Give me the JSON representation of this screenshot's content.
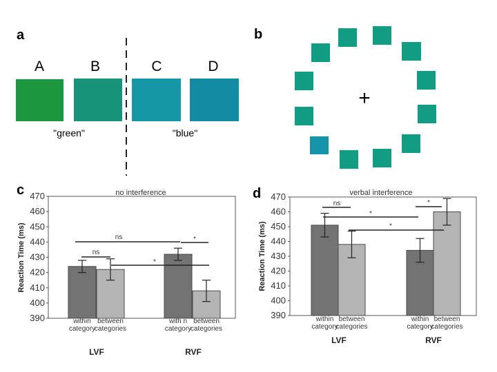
{
  "panels": {
    "a": {
      "label": "a",
      "squares": [
        {
          "letter": "A",
          "color": "#1d9640"
        },
        {
          "letter": "B",
          "color": "#17937a"
        },
        {
          "letter": "C",
          "color": "#1597a6"
        },
        {
          "letter": "D",
          "color": "#128aa2"
        }
      ],
      "word_left": "\"green\"",
      "word_right": "\"blue\""
    },
    "b": {
      "label": "b",
      "fixation": "+",
      "ring_color": "#119c84",
      "target_color": "#1795a8"
    },
    "c": {
      "label": "c"
    },
    "d": {
      "label": "d"
    }
  },
  "chart_data": [
    {
      "type": "bar",
      "title": "no interference",
      "ylabel": "Reaction Time (ms)",
      "ylim": [
        390,
        470
      ],
      "yticks": [
        390,
        400,
        410,
        420,
        430,
        440,
        450,
        460,
        470
      ],
      "groups": [
        "LVF",
        "RVF"
      ],
      "category_labels": [
        [
          "within",
          "category"
        ],
        [
          "between",
          "categories"
        ],
        [
          "with n",
          "category"
        ],
        [
          "between",
          "categories"
        ]
      ],
      "series": [
        {
          "name": "within category",
          "color": "#737373",
          "values": [
            424,
            432
          ],
          "errors": [
            4,
            4
          ]
        },
        {
          "name": "between categories",
          "color": "#b4b4b4",
          "values": [
            422,
            408
          ],
          "errors": [
            7,
            7
          ]
        }
      ],
      "annotations": [
        {
          "text": "ns",
          "bars": [
            0,
            2
          ]
        },
        {
          "text": "ns",
          "bars": [
            0,
            1
          ]
        },
        {
          "text": "*",
          "bars": [
            2,
            3
          ]
        },
        {
          "text": "*",
          "bars": [
            1,
            2
          ]
        }
      ]
    },
    {
      "type": "bar",
      "title": "verbal interference",
      "ylabel": "Reaction Time (ms)",
      "ylim": [
        390,
        470
      ],
      "yticks": [
        390,
        400,
        410,
        420,
        430,
        440,
        450,
        460,
        470
      ],
      "groups": [
        "LVF",
        "RVF"
      ],
      "category_labels": [
        [
          "within",
          "category"
        ],
        [
          "between",
          "categories"
        ],
        [
          "within",
          "category"
        ],
        [
          "between",
          "categories"
        ]
      ],
      "series": [
        {
          "name": "within category",
          "color": "#737373",
          "values": [
            451,
            434
          ],
          "errors": [
            8,
            8
          ]
        },
        {
          "name": "between categories",
          "color": "#b4b4b4",
          "values": [
            438,
            460
          ],
          "errors": [
            9,
            9
          ]
        }
      ],
      "annotations": [
        {
          "text": "ns",
          "bars": [
            0,
            1
          ]
        },
        {
          "text": "*",
          "bars": [
            2,
            3
          ]
        },
        {
          "text": "*",
          "bars": [
            0,
            2
          ]
        },
        {
          "text": "*",
          "bars": [
            1,
            3
          ]
        }
      ]
    }
  ]
}
